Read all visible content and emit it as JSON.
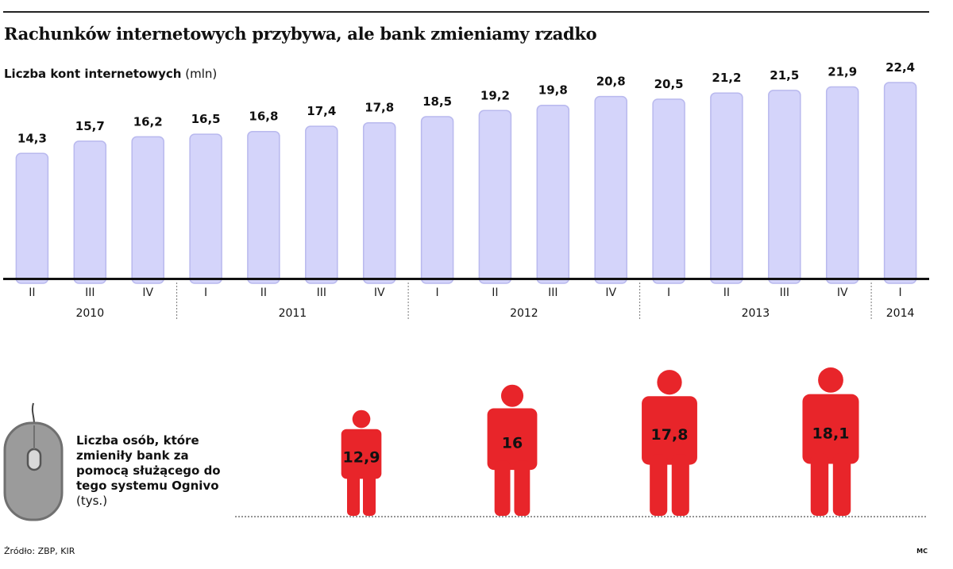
{
  "title": "Rachunków internetowych przybywa, ale bank zmieniamy rzadko",
  "subtitle": {
    "label": "Liczba kont internetowych",
    "unit": "(mln)"
  },
  "chart_data": [
    {
      "type": "bar",
      "categories": [
        "II",
        "III",
        "IV",
        "I",
        "II",
        "III",
        "IV",
        "I",
        "II",
        "III",
        "IV",
        "I",
        "II",
        "III",
        "IV",
        "I"
      ],
      "values": [
        14.3,
        15.7,
        16.2,
        16.5,
        16.8,
        17.4,
        17.8,
        18.5,
        19.2,
        19.8,
        20.8,
        20.5,
        21.2,
        21.5,
        21.9,
        22.4
      ],
      "value_labels": [
        "14,3",
        "15,7",
        "16,2",
        "16,5",
        "16,8",
        "17,4",
        "17,8",
        "18,5",
        "19,2",
        "19,8",
        "20,8",
        "20,5",
        "21,2",
        "21,5",
        "21,9",
        "22,4"
      ],
      "year_groups": [
        {
          "label": "2010",
          "count": 3
        },
        {
          "label": "2011",
          "count": 4
        },
        {
          "label": "2012",
          "count": 4
        },
        {
          "label": "2013",
          "count": 4
        },
        {
          "label": "2014",
          "count": 1
        }
      ],
      "ylim": [
        0,
        22.4
      ],
      "bar_color": "#d4d4fa",
      "bar_edge_color": "#b9b9ee"
    },
    {
      "type": "bar",
      "values": [
        12.9,
        16,
        17.8,
        18.1
      ],
      "value_labels": [
        "12,9",
        "16",
        "17,8",
        "18,1"
      ],
      "mark_color": "#e8252a"
    }
  ],
  "people": {
    "caption": "Liczba osób, które zmieniły bank za pomocą służącego do tego systemu Ognivo",
    "unit": "(tys.)",
    "icon": "computer-mouse-icon"
  },
  "footer": {
    "source": "Źródło: ZBP, KIR",
    "author": "MC"
  }
}
